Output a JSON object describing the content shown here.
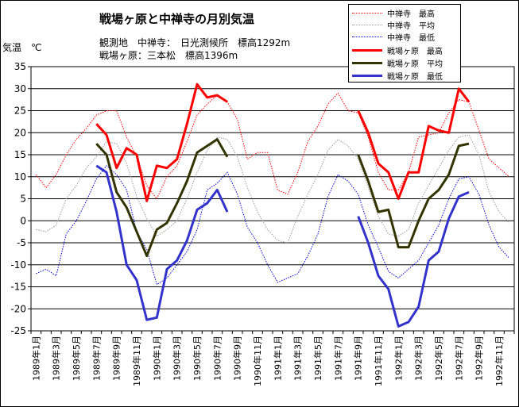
{
  "title": "戦場ヶ原と中禅寺の月別気温",
  "subtitle1": "観測地　中禅寺：　日光測候所　標高1292m",
  "subtitle2": "戦場ヶ原：三本松　標高1396m",
  "ylabel": "気温　℃",
  "chart_data": {
    "type": "line",
    "title": "戦場ヶ原と中禅寺の月別気温",
    "ylabel": "気温　℃",
    "xlabel": "",
    "ylim": [
      -25,
      35
    ],
    "yticks": [
      -25,
      -20,
      -15,
      -10,
      -5,
      0,
      5,
      10,
      15,
      20,
      25,
      30,
      35
    ],
    "grid": true,
    "legend_position": "top-right",
    "x_tick_labels": [
      "1989年1月",
      "1989年3月",
      "1989年5月",
      "1989年7月",
      "1989年9月",
      "1989年11月",
      "1990年1月",
      "1990年3月",
      "1990年5月",
      "1990年7月",
      "1990年9月",
      "1990年11月",
      "1991年1月",
      "1991年3月",
      "1991年5月",
      "1991年7月",
      "1991年9月",
      "1991年11月",
      "1992年1月",
      "1992年3月",
      "1992年5月",
      "1992年7月",
      "1992年9月",
      "1992年11月"
    ],
    "months": 48,
    "series": [
      {
        "name": "中禅寺　最高",
        "color": "#ff0000",
        "style": "dotted",
        "start_index": 0,
        "values": [
          10.5,
          7.5,
          10.5,
          15,
          18.5,
          21,
          24,
          25,
          25,
          19,
          14.5,
          8,
          5,
          10,
          12.5,
          18,
          24,
          26.5,
          28.5,
          27,
          23,
          14,
          15.5,
          15.5,
          7,
          6,
          11,
          18,
          21.5,
          26.5,
          29,
          25,
          24.5,
          19,
          11,
          7,
          7,
          11,
          19,
          19.5,
          20,
          24.5,
          27.5,
          27,
          20.5,
          14,
          12,
          10
        ]
      },
      {
        "name": "中禅寺　平均",
        "color": "#999999",
        "style": "dotted",
        "start_index": 0,
        "values": [
          -2,
          -2.5,
          -1,
          5,
          8,
          12,
          14.5,
          18,
          17.5,
          13,
          5.5,
          0.5,
          -3.5,
          -2,
          0,
          5,
          11,
          16,
          19,
          18.5,
          14.5,
          7.5,
          2,
          -2,
          -4.5,
          -5,
          1,
          6,
          10.5,
          16,
          18.5,
          17,
          14,
          7.5,
          1,
          -3,
          -3.5,
          -2,
          4,
          8,
          12,
          16,
          19,
          19.5,
          15,
          6.5,
          2,
          -0.5
        ]
      },
      {
        "name": "中禅寺　最低",
        "color": "#0000cc",
        "style": "dotted",
        "start_index": 0,
        "values": [
          -12,
          -11,
          -12.5,
          -3,
          0,
          4.5,
          9.5,
          12.5,
          10.5,
          7,
          -2.5,
          -6.5,
          -14.5,
          -13,
          -10,
          -7,
          -2,
          7,
          8.5,
          11,
          6,
          -1.5,
          -5,
          -10,
          -14,
          -13,
          -12,
          -8,
          -3,
          5.5,
          10.5,
          9,
          6,
          -1,
          -6,
          -11.5,
          -13,
          -11,
          -9,
          -5,
          -1,
          5,
          9.5,
          10,
          6,
          -1,
          -6,
          -8.5
        ]
      },
      {
        "name": "戦場ヶ原　最高",
        "color": "#ff0000",
        "style": "solid",
        "start_index": 6,
        "values": [
          22,
          19.5,
          12,
          16.5,
          15,
          4.5,
          12.5,
          12,
          14,
          22,
          31,
          28,
          28.5,
          27
        ]
      },
      {
        "name": "戦場ヶ原　平均",
        "color": "#333300",
        "style": "solid",
        "start_index": 6,
        "values": [
          17.5,
          15,
          6.5,
          3,
          -2.5,
          -8,
          -2,
          -0.5,
          4,
          9,
          15.5,
          17,
          18.5,
          14.5
        ]
      },
      {
        "name": "戦場ヶ原　最低",
        "color": "#3333cc",
        "style": "solid",
        "start_index": 6,
        "values": [
          12.5,
          11,
          2,
          -10,
          -13.5,
          -22.5,
          -22,
          -11,
          -9,
          -4.5,
          2.5,
          4,
          7,
          2
        ]
      },
      {
        "name": "戦場ヶ原　最高 (1991-92)",
        "color": "#ff0000",
        "style": "solid",
        "start_index": 32,
        "legend": false,
        "values": [
          25,
          20,
          13,
          11,
          5,
          11,
          11,
          21.5,
          20.5,
          20,
          30,
          27
        ]
      },
      {
        "name": "戦場ヶ原　平均 (1991-92)",
        "color": "#333300",
        "style": "solid",
        "start_index": 32,
        "legend": false,
        "values": [
          15,
          9,
          2,
          2.5,
          -6,
          -6,
          0,
          5,
          7,
          10.5,
          17,
          17.5
        ]
      },
      {
        "name": "戦場ヶ原　最低 (1991-92)",
        "color": "#3333cc",
        "style": "solid",
        "start_index": 32,
        "legend": false,
        "values": [
          1,
          -5,
          -12.5,
          -15.5,
          -24,
          -23,
          -19.5,
          -9,
          -7,
          0.5,
          5.5,
          6.5
        ]
      }
    ]
  }
}
